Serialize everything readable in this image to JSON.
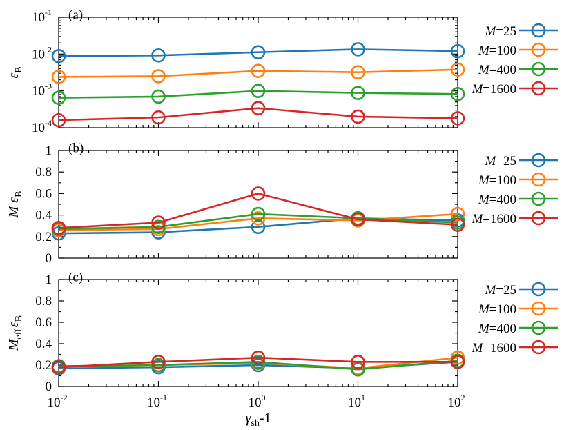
{
  "chart_data": [
    {
      "type": "line",
      "panel_label": "(a)",
      "ylabel": "ε",
      "ylabel_sub": "B",
      "yscale": "log",
      "ylim": [
        0.0001,
        0.1
      ],
      "yticks": [
        {
          "base": "10",
          "exp": "-4"
        },
        {
          "base": "10",
          "exp": "-3"
        },
        {
          "base": "10",
          "exp": "-2"
        },
        {
          "base": "10",
          "exp": "-1"
        }
      ],
      "xscale": "log",
      "xlim": [
        0.01,
        100
      ],
      "x": [
        0.01,
        0.1,
        1,
        10,
        100
      ],
      "grid": false,
      "legend_position": "right",
      "series": [
        {
          "name_var": "M",
          "name_val": "=25",
          "color": "#1f77b4",
          "values": [
            0.0088,
            0.0092,
            0.0112,
            0.0135,
            0.012
          ]
        },
        {
          "name_var": "M",
          "name_val": "=100",
          "color": "#ff7f0e",
          "values": [
            0.0024,
            0.0025,
            0.0035,
            0.0032,
            0.0038
          ]
        },
        {
          "name_var": "M",
          "name_val": "=400",
          "color": "#2ca02c",
          "values": [
            0.00065,
            0.0007,
            0.001,
            0.00088,
            0.00082
          ]
        },
        {
          "name_var": "M",
          "name_val": "=1600",
          "color": "#d62728",
          "values": [
            0.00016,
            0.00019,
            0.00034,
            0.0002,
            0.00018
          ]
        }
      ]
    },
    {
      "type": "line",
      "panel_label": "(b)",
      "ylabel": "M ε",
      "ylabel_sub": "B",
      "yscale": "linear",
      "ylim": [
        0,
        1
      ],
      "yticks": [
        {
          "base": "0"
        },
        {
          "base": "0.2"
        },
        {
          "base": "0.4"
        },
        {
          "base": "0.6"
        },
        {
          "base": "0.8"
        },
        {
          "base": "1"
        }
      ],
      "xscale": "log",
      "xlim": [
        0.01,
        100
      ],
      "x": [
        0.01,
        0.1,
        1,
        10,
        100
      ],
      "grid": false,
      "legend_position": "right",
      "series": [
        {
          "name_var": "M",
          "name_val": "=25",
          "color": "#1f77b4",
          "values": [
            0.23,
            0.24,
            0.29,
            0.37,
            0.35
          ]
        },
        {
          "name_var": "M",
          "name_val": "=100",
          "color": "#ff7f0e",
          "values": [
            0.26,
            0.27,
            0.37,
            0.35,
            0.41
          ]
        },
        {
          "name_var": "M",
          "name_val": "=400",
          "color": "#2ca02c",
          "values": [
            0.27,
            0.29,
            0.41,
            0.37,
            0.33
          ]
        },
        {
          "name_var": "M",
          "name_val": "=1600",
          "color": "#d62728",
          "values": [
            0.28,
            0.33,
            0.6,
            0.36,
            0.31
          ]
        }
      ]
    },
    {
      "type": "line",
      "panel_label": "(c)",
      "ylabel": "M",
      "ylabel_sub": "eff",
      "ylabel_after": "ε",
      "ylabel_after_sub": "B",
      "yscale": "linear",
      "ylim": [
        0,
        1
      ],
      "yticks": [
        {
          "base": "0"
        },
        {
          "base": "0.2"
        },
        {
          "base": "0.4"
        },
        {
          "base": "0.6"
        },
        {
          "base": "0.8"
        },
        {
          "base": "1"
        }
      ],
      "xscale": "log",
      "xlim": [
        0.01,
        100
      ],
      "x": [
        0.01,
        0.1,
        1,
        10,
        100
      ],
      "xticks": [
        {
          "base": "10",
          "exp": "-2"
        },
        {
          "base": "10",
          "exp": "-1"
        },
        {
          "base": "10",
          "exp": "0"
        },
        {
          "base": "10",
          "exp": "1"
        },
        {
          "base": "10",
          "exp": "2"
        }
      ],
      "xlabel": "γ",
      "xlabel_sub": "sh",
      "xlabel_after": "-1",
      "grid": false,
      "legend_position": "right",
      "series": [
        {
          "name_var": "M",
          "name_val": "=25",
          "color": "#1f77b4",
          "values": [
            0.17,
            0.18,
            0.2,
            0.17,
            0.23
          ]
        },
        {
          "name_var": "M",
          "name_val": "=100",
          "color": "#ff7f0e",
          "values": [
            0.18,
            0.2,
            0.22,
            0.17,
            0.27
          ]
        },
        {
          "name_var": "M",
          "name_val": "=400",
          "color": "#2ca02c",
          "values": [
            0.19,
            0.2,
            0.23,
            0.16,
            0.24
          ]
        },
        {
          "name_var": "M",
          "name_val": "=1600",
          "color": "#d62728",
          "values": [
            0.18,
            0.23,
            0.27,
            0.23,
            0.23
          ]
        }
      ]
    }
  ]
}
